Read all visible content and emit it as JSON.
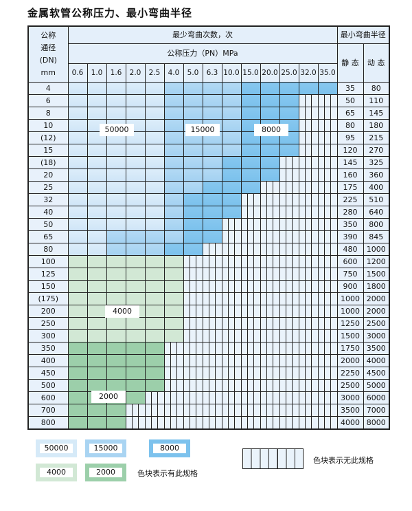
{
  "title": "金属软管公称压力、最小弯曲半径",
  "header": {
    "dn_label": [
      "公称",
      "通径",
      "(DN)",
      "mm"
    ],
    "cycles_label": "最少弯曲次数，次",
    "pressure_label": "公称压力（PN）MPa",
    "radius_label": "最小弯曲半径",
    "static_label": "静 态",
    "dynamic_label": "动 态"
  },
  "pressures": [
    "0.6",
    "1.0",
    "1.6",
    "2.0",
    "2.5",
    "4.0",
    "5.0",
    "6.3",
    "10.0",
    "15.0",
    "20.0",
    "25.0",
    "32.0",
    "35.0"
  ],
  "colors": {
    "L": "#d6eaf8",
    "M": "#a9d4f2",
    "D": "#7dc2ed",
    "G": "#d2e8d5",
    "H": "#9ccfaa",
    "X": "#eaf3fb"
  },
  "region_values": {
    "L": "50000",
    "M": "15000",
    "D": "8000",
    "G": "4000",
    "H": "2000"
  },
  "rows": [
    {
      "dn": "4",
      "static": "35",
      "dynamic": "80",
      "cells": "LLLLLMMMMDDDDD"
    },
    {
      "dn": "6",
      "static": "50",
      "dynamic": "110",
      "cells": "LLLLLMMMMDDD"
    },
    {
      "dn": "8",
      "static": "65",
      "dynamic": "145",
      "cells": "LLLLLMMMMDDD"
    },
    {
      "dn": "10",
      "static": "80",
      "dynamic": "180",
      "cells": "LLLLLMMMMDDD"
    },
    {
      "dn": "(12)",
      "static": "95",
      "dynamic": "215",
      "cells": "LLLLLMMMMDDD"
    },
    {
      "dn": "15",
      "static": "120",
      "dynamic": "270",
      "cells": "LLLLLMMMMDDD"
    },
    {
      "dn": "(18)",
      "static": "145",
      "dynamic": "325",
      "cells": "LLLLLMMMDDD"
    },
    {
      "dn": "20",
      "static": "160",
      "dynamic": "360",
      "cells": "LLLLLMMMDDD"
    },
    {
      "dn": "25",
      "static": "175",
      "dynamic": "400",
      "cells": "LLLLLMMDDD"
    },
    {
      "dn": "32",
      "static": "225",
      "dynamic": "510",
      "cells": "LLLLLMDDD"
    },
    {
      "dn": "40",
      "static": "280",
      "dynamic": "640",
      "cells": "LLLLLMDDD"
    },
    {
      "dn": "50",
      "static": "350",
      "dynamic": "800",
      "cells": "LLLLLMDD"
    },
    {
      "dn": "65",
      "static": "390",
      "dynamic": "845",
      "cells": "LLMMMMDD"
    },
    {
      "dn": "80",
      "static": "480",
      "dynamic": "1000",
      "cells": "LLMMMDD"
    },
    {
      "dn": "100",
      "static": "600",
      "dynamic": "1200",
      "cells": "GGGGGG"
    },
    {
      "dn": "125",
      "static": "750",
      "dynamic": "1500",
      "cells": "GGGGGG"
    },
    {
      "dn": "150",
      "static": "900",
      "dynamic": "1800",
      "cells": "GGGGGG"
    },
    {
      "dn": "(175)",
      "static": "1000",
      "dynamic": "2000",
      "cells": "GGGGGG"
    },
    {
      "dn": "200",
      "static": "1000",
      "dynamic": "2000",
      "cells": "GGGGGG"
    },
    {
      "dn": "250",
      "static": "1250",
      "dynamic": "2500",
      "cells": "GGGGGG"
    },
    {
      "dn": "300",
      "static": "1500",
      "dynamic": "3000",
      "cells": "GGGGGG"
    },
    {
      "dn": "350",
      "static": "1750",
      "dynamic": "3500",
      "cells": "HHHHH"
    },
    {
      "dn": "400",
      "static": "2000",
      "dynamic": "4000",
      "cells": "HHHHH"
    },
    {
      "dn": "450",
      "static": "2250",
      "dynamic": "4500",
      "cells": "HHHHH"
    },
    {
      "dn": "500",
      "static": "2500",
      "dynamic": "5000",
      "cells": "HHHHH"
    },
    {
      "dn": "600",
      "static": "3000",
      "dynamic": "6000",
      "cells": "HHHH"
    },
    {
      "dn": "700",
      "static": "3500",
      "dynamic": "7000",
      "cells": "HHH"
    },
    {
      "dn": "800",
      "static": "4000",
      "dynamic": "8000",
      "cells": "HHH"
    }
  ],
  "legend": {
    "available_text": "色块表示有此规格",
    "unavailable_text": "色块表示无此规格"
  }
}
